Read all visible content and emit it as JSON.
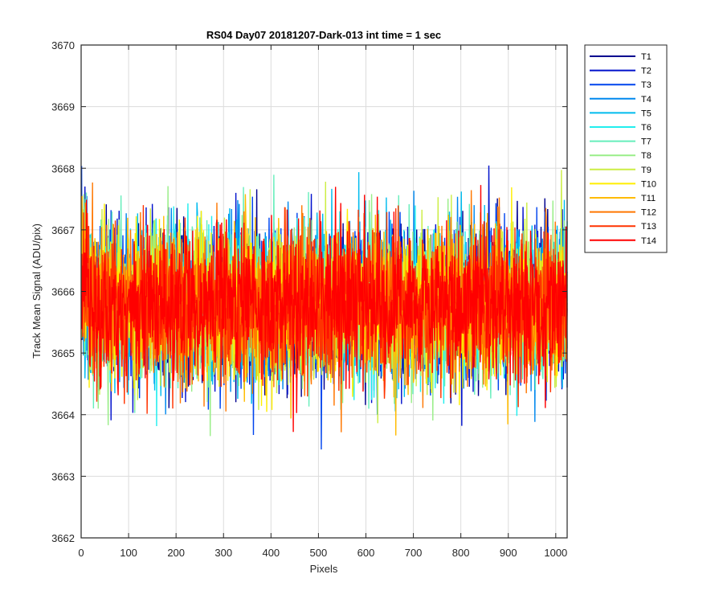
{
  "chart_data": {
    "type": "line",
    "title": "RS04 Day07 20181207-Dark-013 int time = 1 sec",
    "xlabel": "Pixels",
    "ylabel": "Track Mean Signal (ADU/pix)",
    "xlim": [
      0,
      1024
    ],
    "ylim": [
      3662,
      3670
    ],
    "xticks": [
      0,
      100,
      200,
      300,
      400,
      500,
      600,
      700,
      800,
      900,
      1000
    ],
    "yticks": [
      3662,
      3663,
      3664,
      3665,
      3666,
      3667,
      3668,
      3669,
      3670
    ],
    "grid": true,
    "legend_position": "outside-top-right",
    "n_points": 1024,
    "series": [
      {
        "name": "T1",
        "color": "#00008f",
        "mean": 3665.8,
        "sd": 0.95
      },
      {
        "name": "T2",
        "color": "#0011cc",
        "mean": 3665.8,
        "sd": 0.95
      },
      {
        "name": "T3",
        "color": "#0044ee",
        "mean": 3665.8,
        "sd": 0.95
      },
      {
        "name": "T4",
        "color": "#0088ee",
        "mean": 3665.8,
        "sd": 0.95
      },
      {
        "name": "T5",
        "color": "#00bbee",
        "mean": 3665.8,
        "sd": 0.95
      },
      {
        "name": "T6",
        "color": "#22eeee",
        "mean": 3665.8,
        "sd": 0.95
      },
      {
        "name": "T7",
        "color": "#66eebb",
        "mean": 3665.8,
        "sd": 0.95
      },
      {
        "name": "T8",
        "color": "#99ee88",
        "mean": 3665.8,
        "sd": 0.95
      },
      {
        "name": "T9",
        "color": "#ccee44",
        "mean": 3665.8,
        "sd": 0.95
      },
      {
        "name": "T10",
        "color": "#ffee00",
        "mean": 3665.8,
        "sd": 0.95
      },
      {
        "name": "T11",
        "color": "#ffbb00",
        "mean": 3665.8,
        "sd": 0.95
      },
      {
        "name": "T12",
        "color": "#ff7700",
        "mean": 3665.8,
        "sd": 0.95
      },
      {
        "name": "T13",
        "color": "#ff3300",
        "mean": 3665.8,
        "sd": 0.95
      },
      {
        "name": "T14",
        "color": "#ff0000",
        "mean": 3665.8,
        "sd": 0.95
      }
    ]
  }
}
